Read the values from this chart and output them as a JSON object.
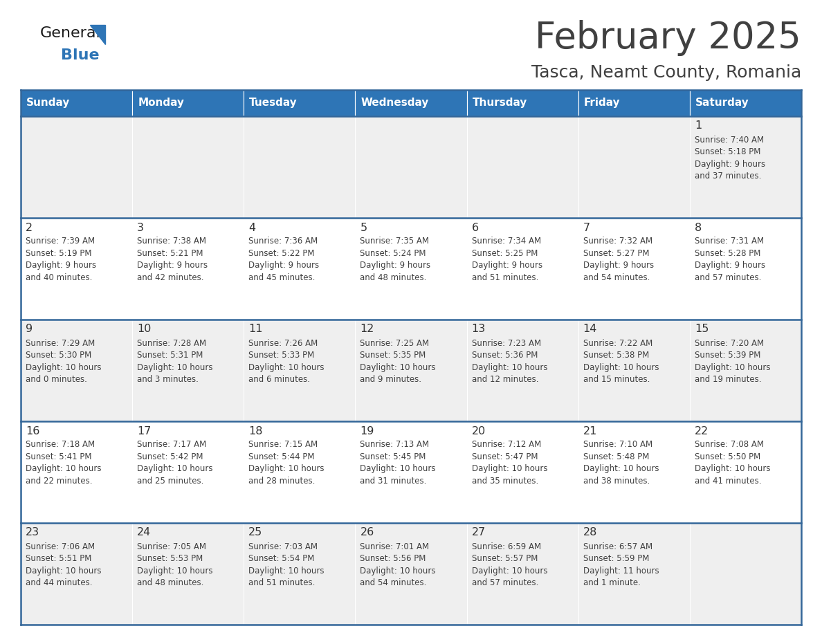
{
  "title": "February 2025",
  "subtitle": "Tasca, Neamt County, Romania",
  "header_color": "#2E75B6",
  "header_text_color": "#FFFFFF",
  "day_names": [
    "Sunday",
    "Monday",
    "Tuesday",
    "Wednesday",
    "Thursday",
    "Friday",
    "Saturday"
  ],
  "background_color": "#FFFFFF",
  "cell_bg_even": "#EFEFEF",
  "cell_bg_odd": "#FFFFFF",
  "separator_color": "#336699",
  "text_color": "#404040",
  "date_color": "#333333",
  "logo_color1": "#1a1a1a",
  "logo_color2": "#2E75B6",
  "weeks": [
    [
      {
        "day": null,
        "info": null
      },
      {
        "day": null,
        "info": null
      },
      {
        "day": null,
        "info": null
      },
      {
        "day": null,
        "info": null
      },
      {
        "day": null,
        "info": null
      },
      {
        "day": null,
        "info": null
      },
      {
        "day": 1,
        "info": "Sunrise: 7:40 AM\nSunset: 5:18 PM\nDaylight: 9 hours\nand 37 minutes."
      }
    ],
    [
      {
        "day": 2,
        "info": "Sunrise: 7:39 AM\nSunset: 5:19 PM\nDaylight: 9 hours\nand 40 minutes."
      },
      {
        "day": 3,
        "info": "Sunrise: 7:38 AM\nSunset: 5:21 PM\nDaylight: 9 hours\nand 42 minutes."
      },
      {
        "day": 4,
        "info": "Sunrise: 7:36 AM\nSunset: 5:22 PM\nDaylight: 9 hours\nand 45 minutes."
      },
      {
        "day": 5,
        "info": "Sunrise: 7:35 AM\nSunset: 5:24 PM\nDaylight: 9 hours\nand 48 minutes."
      },
      {
        "day": 6,
        "info": "Sunrise: 7:34 AM\nSunset: 5:25 PM\nDaylight: 9 hours\nand 51 minutes."
      },
      {
        "day": 7,
        "info": "Sunrise: 7:32 AM\nSunset: 5:27 PM\nDaylight: 9 hours\nand 54 minutes."
      },
      {
        "day": 8,
        "info": "Sunrise: 7:31 AM\nSunset: 5:28 PM\nDaylight: 9 hours\nand 57 minutes."
      }
    ],
    [
      {
        "day": 9,
        "info": "Sunrise: 7:29 AM\nSunset: 5:30 PM\nDaylight: 10 hours\nand 0 minutes."
      },
      {
        "day": 10,
        "info": "Sunrise: 7:28 AM\nSunset: 5:31 PM\nDaylight: 10 hours\nand 3 minutes."
      },
      {
        "day": 11,
        "info": "Sunrise: 7:26 AM\nSunset: 5:33 PM\nDaylight: 10 hours\nand 6 minutes."
      },
      {
        "day": 12,
        "info": "Sunrise: 7:25 AM\nSunset: 5:35 PM\nDaylight: 10 hours\nand 9 minutes."
      },
      {
        "day": 13,
        "info": "Sunrise: 7:23 AM\nSunset: 5:36 PM\nDaylight: 10 hours\nand 12 minutes."
      },
      {
        "day": 14,
        "info": "Sunrise: 7:22 AM\nSunset: 5:38 PM\nDaylight: 10 hours\nand 15 minutes."
      },
      {
        "day": 15,
        "info": "Sunrise: 7:20 AM\nSunset: 5:39 PM\nDaylight: 10 hours\nand 19 minutes."
      }
    ],
    [
      {
        "day": 16,
        "info": "Sunrise: 7:18 AM\nSunset: 5:41 PM\nDaylight: 10 hours\nand 22 minutes."
      },
      {
        "day": 17,
        "info": "Sunrise: 7:17 AM\nSunset: 5:42 PM\nDaylight: 10 hours\nand 25 minutes."
      },
      {
        "day": 18,
        "info": "Sunrise: 7:15 AM\nSunset: 5:44 PM\nDaylight: 10 hours\nand 28 minutes."
      },
      {
        "day": 19,
        "info": "Sunrise: 7:13 AM\nSunset: 5:45 PM\nDaylight: 10 hours\nand 31 minutes."
      },
      {
        "day": 20,
        "info": "Sunrise: 7:12 AM\nSunset: 5:47 PM\nDaylight: 10 hours\nand 35 minutes."
      },
      {
        "day": 21,
        "info": "Sunrise: 7:10 AM\nSunset: 5:48 PM\nDaylight: 10 hours\nand 38 minutes."
      },
      {
        "day": 22,
        "info": "Sunrise: 7:08 AM\nSunset: 5:50 PM\nDaylight: 10 hours\nand 41 minutes."
      }
    ],
    [
      {
        "day": 23,
        "info": "Sunrise: 7:06 AM\nSunset: 5:51 PM\nDaylight: 10 hours\nand 44 minutes."
      },
      {
        "day": 24,
        "info": "Sunrise: 7:05 AM\nSunset: 5:53 PM\nDaylight: 10 hours\nand 48 minutes."
      },
      {
        "day": 25,
        "info": "Sunrise: 7:03 AM\nSunset: 5:54 PM\nDaylight: 10 hours\nand 51 minutes."
      },
      {
        "day": 26,
        "info": "Sunrise: 7:01 AM\nSunset: 5:56 PM\nDaylight: 10 hours\nand 54 minutes."
      },
      {
        "day": 27,
        "info": "Sunrise: 6:59 AM\nSunset: 5:57 PM\nDaylight: 10 hours\nand 57 minutes."
      },
      {
        "day": 28,
        "info": "Sunrise: 6:57 AM\nSunset: 5:59 PM\nDaylight: 11 hours\nand 1 minute."
      },
      {
        "day": null,
        "info": null
      }
    ]
  ]
}
